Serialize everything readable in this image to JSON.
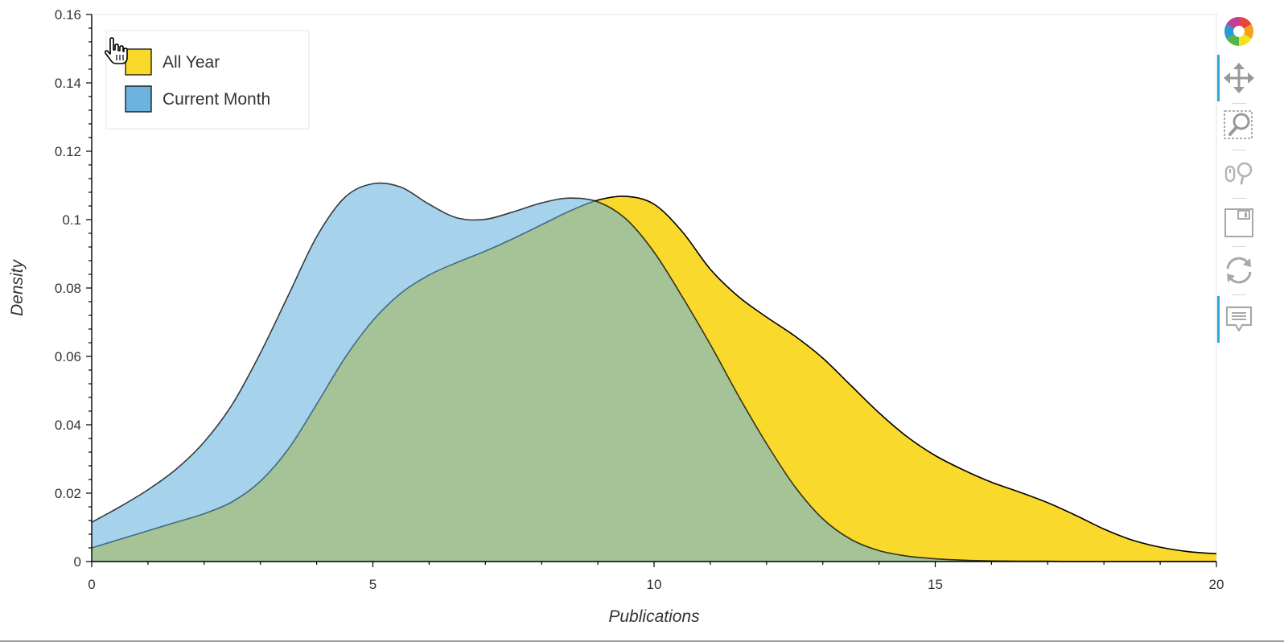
{
  "chart_data": {
    "type": "area",
    "title": "",
    "xlabel": "Publications",
    "ylabel": "Density",
    "xlim": [
      0,
      20
    ],
    "ylim": [
      0,
      0.16
    ],
    "x_ticks": [
      0,
      5,
      10,
      15,
      20
    ],
    "x_tick_labels": [
      "0",
      "5",
      "10",
      "15",
      "20"
    ],
    "y_ticks": [
      0,
      0.02,
      0.04,
      0.06,
      0.08,
      0.1,
      0.12,
      0.14,
      0.16
    ],
    "y_tick_labels": [
      "0",
      "0.02",
      "0.04",
      "0.06",
      "0.08",
      "0.1",
      "0.12",
      "0.14",
      "0.16"
    ],
    "legend_position": "top-left",
    "grid": false,
    "series": [
      {
        "name": "All Year",
        "color": "#f9d92c",
        "x": [
          0,
          0.5,
          1,
          1.5,
          2,
          2.5,
          3,
          3.5,
          4,
          4.5,
          5,
          5.5,
          6,
          6.5,
          7,
          7.5,
          8,
          8.5,
          9,
          9.5,
          10,
          10.5,
          11,
          11.5,
          12,
          12.5,
          13,
          13.5,
          14,
          14.5,
          15,
          15.5,
          16,
          16.5,
          17,
          17.5,
          18,
          18.5,
          19,
          19.5,
          20
        ],
        "values": [
          0.004,
          0.0065,
          0.009,
          0.0115,
          0.014,
          0.0175,
          0.0235,
          0.033,
          0.046,
          0.0595,
          0.0705,
          0.0785,
          0.0838,
          0.0875,
          0.0908,
          0.0945,
          0.0985,
          0.1025,
          0.1057,
          0.1068,
          0.1045,
          0.0965,
          0.0855,
          0.0775,
          0.0715,
          0.066,
          0.0595,
          0.0515,
          0.0435,
          0.0365,
          0.031,
          0.0268,
          0.0232,
          0.0203,
          0.0172,
          0.0135,
          0.0095,
          0.0063,
          0.0042,
          0.0029,
          0.0023
        ]
      },
      {
        "name": "Current Month",
        "color": "#6cb4de",
        "x": [
          0,
          0.5,
          1,
          1.5,
          2,
          2.5,
          3,
          3.5,
          4,
          4.5,
          5,
          5.5,
          6,
          6.5,
          7,
          7.5,
          8,
          8.5,
          9,
          9.5,
          10,
          10.5,
          11,
          11.5,
          12,
          12.5,
          13,
          13.5,
          14,
          14.5,
          15,
          15.5,
          16,
          16.5,
          17,
          17.5,
          18,
          18.5,
          19,
          19.5,
          20
        ],
        "values": [
          0.0115,
          0.016,
          0.021,
          0.027,
          0.035,
          0.046,
          0.061,
          0.078,
          0.095,
          0.1065,
          0.1105,
          0.1095,
          0.1045,
          0.1005,
          0.1001,
          0.1023,
          0.1049,
          0.1063,
          0.1052,
          0.1002,
          0.0905,
          0.0775,
          0.0635,
          0.0485,
          0.0345,
          0.022,
          0.0125,
          0.0065,
          0.0032,
          0.0016,
          0.0008,
          0.0004,
          0.0002,
          0.0001,
          0.0001,
          0,
          0,
          0,
          0,
          0,
          0
        ]
      }
    ]
  },
  "toolbar": {
    "tools": [
      {
        "name": "bokeh-logo-icon",
        "active": false
      },
      {
        "name": "pan-icon",
        "active": true
      },
      {
        "name": "box-zoom-icon",
        "active": false
      },
      {
        "name": "wheel-zoom-icon",
        "active": false
      },
      {
        "name": "save-icon",
        "active": false
      },
      {
        "name": "reset-icon",
        "active": false
      },
      {
        "name": "hover-icon",
        "active": true
      }
    ]
  }
}
